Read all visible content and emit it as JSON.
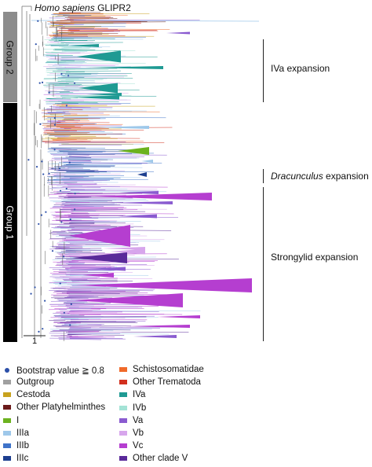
{
  "tree": {
    "root_label": "Homo sapiens GLIPR2",
    "root_label_italic": "Homo sapiens",
    "root_label_rest": "GLIPR2",
    "groups": [
      "Group 2",
      "Group 1"
    ],
    "expansions": {
      "iva": "IVa expansion",
      "dracunculus_italic": "Dracunculus",
      "dracunculus_rest": "expansion",
      "strongylid": "Strongylid expansion"
    },
    "scale_bar_value": "1"
  },
  "legend": {
    "bootstrap": {
      "label": "Bootstrap value ≧ 0.8",
      "color": "#2b4fa8"
    },
    "col1": [
      {
        "label": "Outgroup",
        "color": "#a0a0a0"
      },
      {
        "label": "Cestoda",
        "color": "#c8a21e"
      },
      {
        "label": "Other Platyhelminthes",
        "color": "#6b1a1a"
      },
      {
        "label": "I",
        "color": "#6cb21f"
      },
      {
        "label": "IIIa",
        "color": "#9ec8ea"
      },
      {
        "label": "IIIb",
        "color": "#3f73c9"
      },
      {
        "label": "IIIc",
        "color": "#1d3f8f"
      }
    ],
    "col2": [
      {
        "label": "Schistosomatidae",
        "color": "#f06a2a"
      },
      {
        "label": "Other Trematoda",
        "color": "#d2301f"
      },
      {
        "label": "IVa",
        "color": "#1f9a93"
      },
      {
        "label": "IVb",
        "color": "#a4e3d6"
      },
      {
        "label": "Va",
        "color": "#8a5bd0"
      },
      {
        "label": "Vb",
        "color": "#d7a6ec"
      },
      {
        "label": "Vc",
        "color": "#b53ed0"
      },
      {
        "label": "Other clade V",
        "color": "#5a2a9a"
      }
    ]
  }
}
